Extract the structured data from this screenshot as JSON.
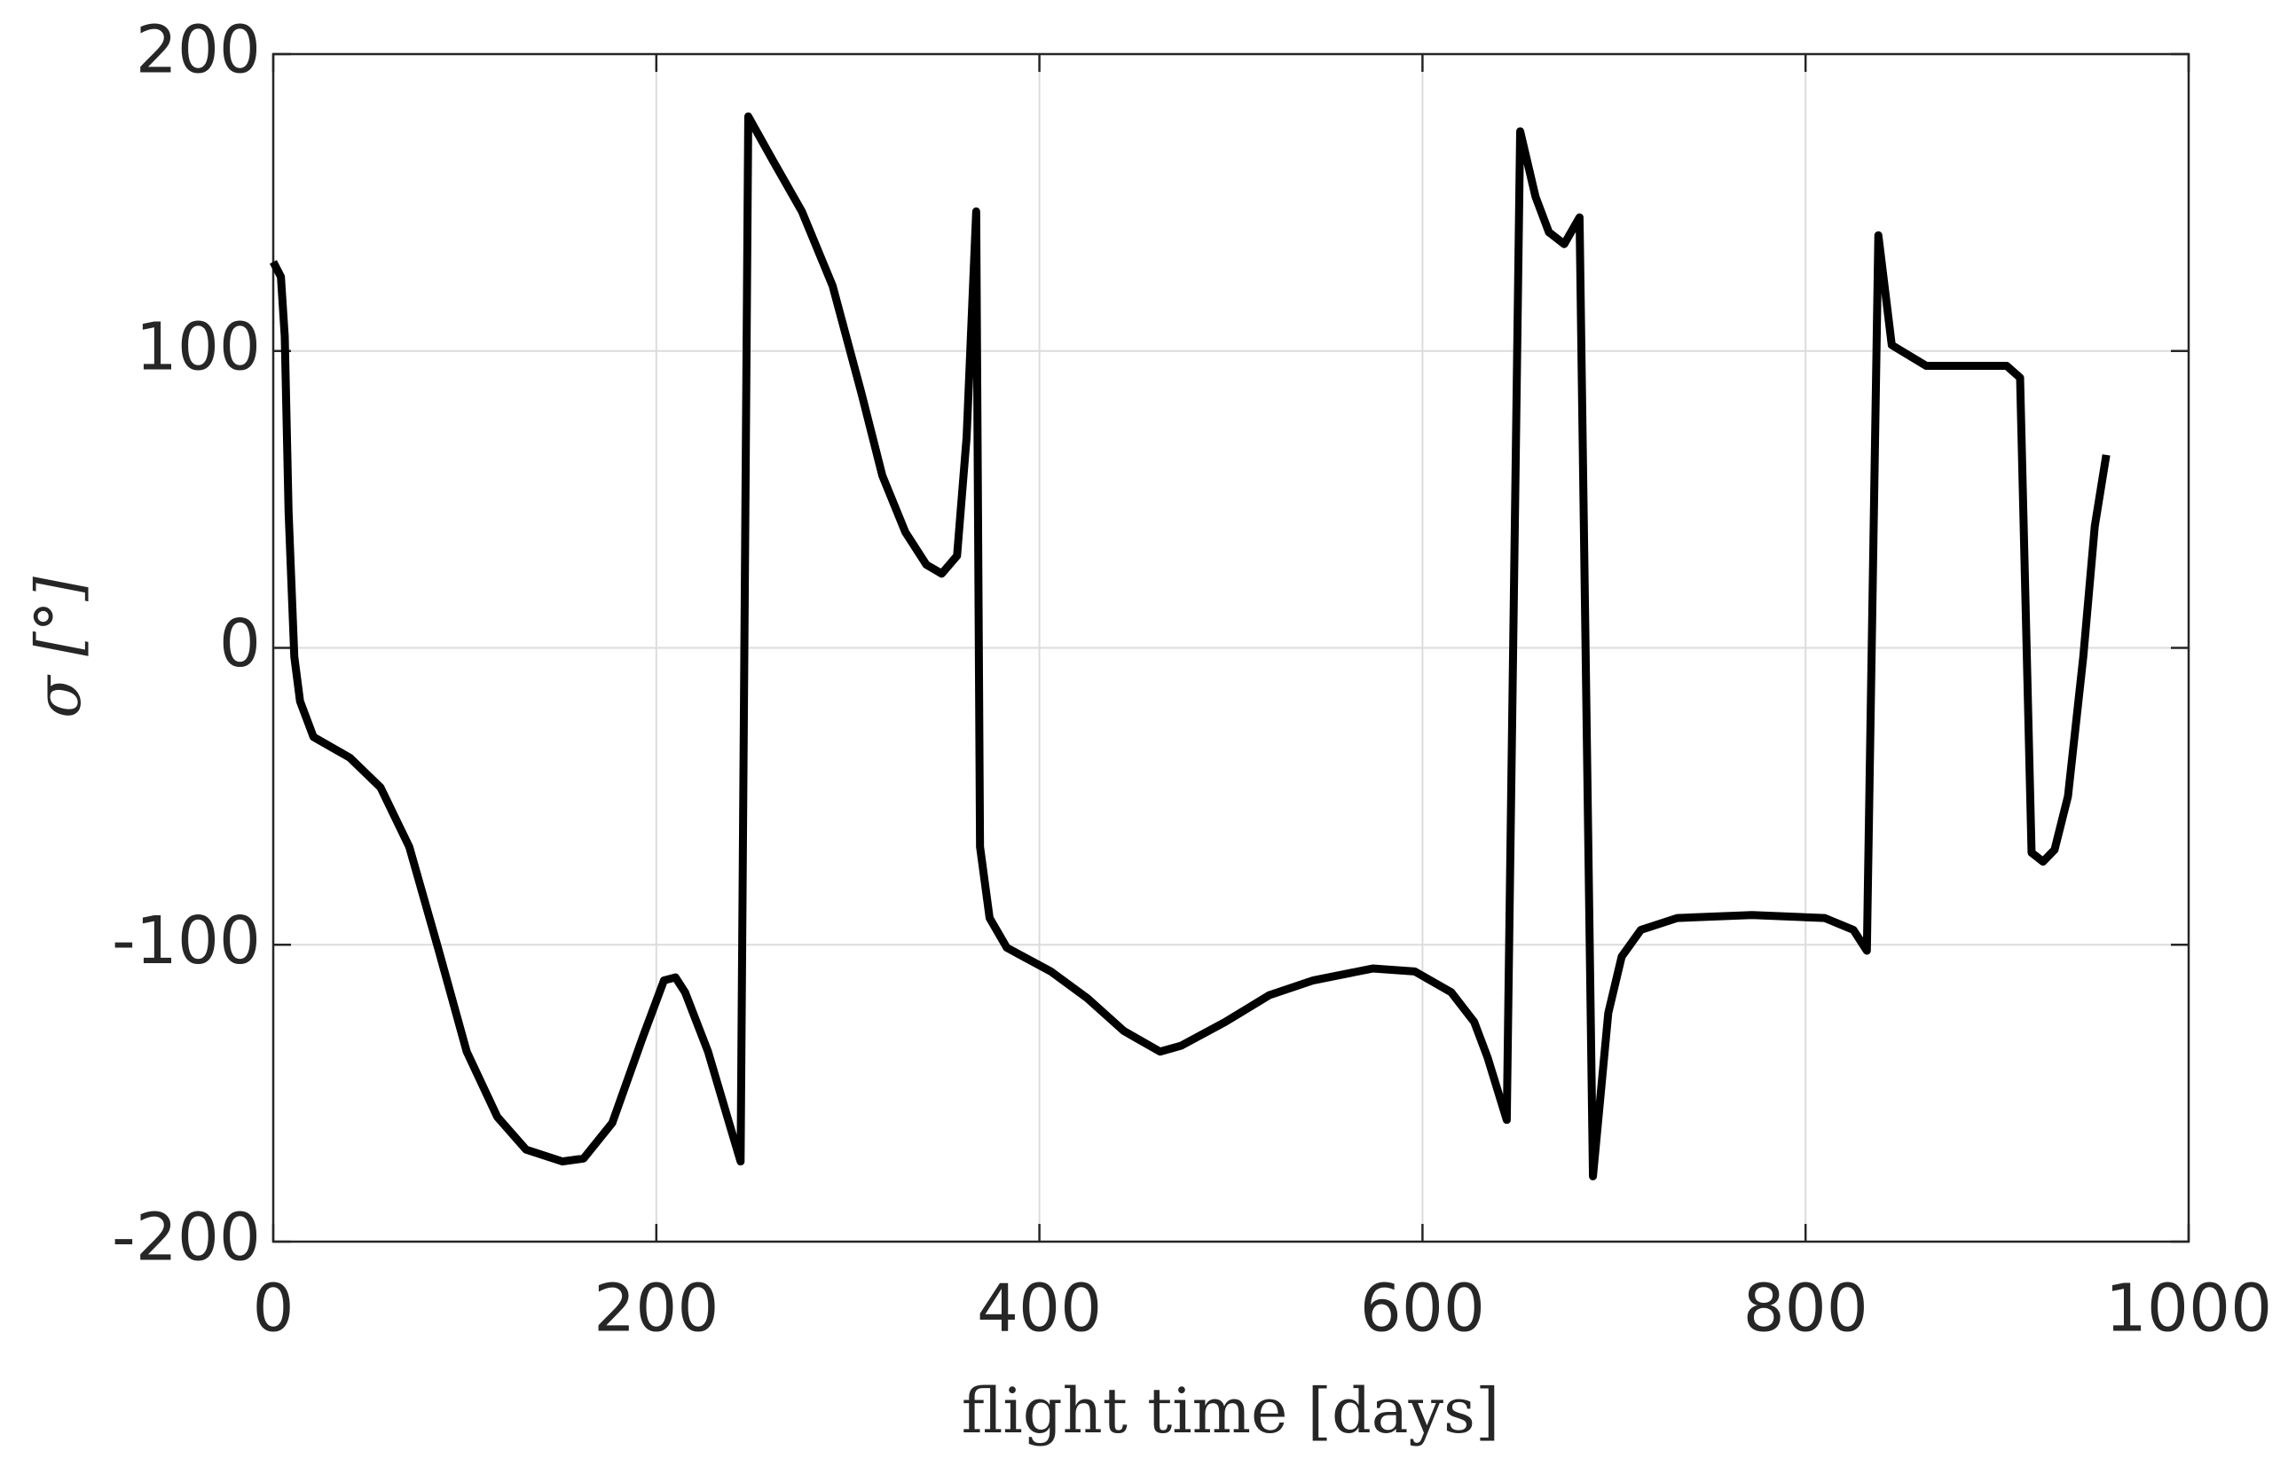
{
  "chart_data": {
    "type": "line",
    "xlabel": "flight time [days]",
    "ylabel": "σ [°]",
    "x": [
      0,
      4,
      6,
      8,
      11,
      14,
      21,
      40,
      56,
      71,
      86,
      101,
      117,
      132,
      151,
      162,
      177,
      193,
      204,
      210,
      215,
      227,
      238,
      244,
      248,
      261,
      276,
      292,
      307,
      318,
      330,
      341,
      349,
      357,
      362,
      367,
      369,
      374,
      383,
      406,
      425,
      444,
      463,
      474,
      497,
      520,
      543,
      574,
      596,
      615,
      627,
      634,
      644,
      651,
      659,
      666,
      674,
      682,
      689,
      697,
      704,
      714,
      733,
      772,
      810,
      825,
      832,
      838,
      845,
      863,
      905,
      912,
      918,
      924,
      930,
      937,
      945,
      951,
      957
    ],
    "series": [
      {
        "name": "σ",
        "color": "#000000",
        "values": [
          130,
          125,
          105,
          46,
          -3,
          -18,
          -30,
          -37,
          -47,
          -67,
          -101,
          -136,
          -158,
          -169,
          -173,
          -172,
          -160,
          -131,
          -112,
          -111,
          -116,
          -136,
          -160,
          -173,
          179,
          164,
          147,
          122,
          86,
          58,
          39,
          28,
          25,
          31,
          71,
          147,
          -67,
          -91,
          -101,
          -109,
          -118,
          -129,
          -136,
          -134,
          -126,
          -117,
          -112,
          -108,
          -109,
          -116,
          -126,
          -138,
          -159,
          174,
          152,
          140,
          136,
          145,
          -178,
          -123,
          -104,
          -95,
          -91,
          -90,
          -91,
          -95,
          -102,
          139,
          102,
          95,
          95,
          91,
          -69,
          -72,
          -68,
          -50,
          -3,
          41,
          65
        ]
      }
    ],
    "xlim": [
      0,
      1000
    ],
    "xticks": [
      0,
      200,
      400,
      600,
      800,
      1000
    ],
    "ylim": [
      -200,
      200
    ],
    "yticks": [
      -200,
      -100,
      0,
      100,
      200
    ],
    "grid": true
  }
}
